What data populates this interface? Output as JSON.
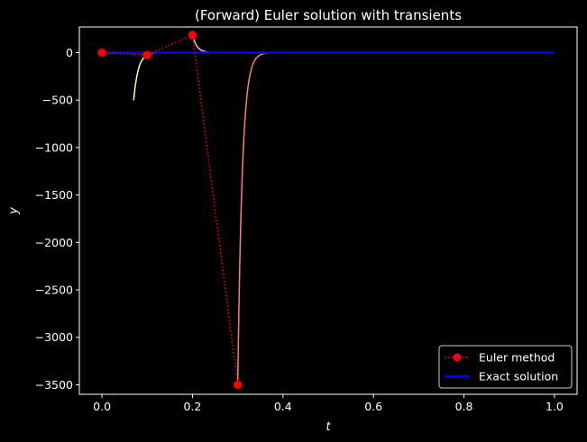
{
  "chart_data": {
    "type": "line",
    "title": "(Forward) Euler solution with transients",
    "xlabel": "t",
    "ylabel": "y",
    "xlim": [
      -0.05,
      1.05
    ],
    "ylim": [
      -3600,
      270
    ],
    "x_ticks": [
      0.0,
      0.2,
      0.4,
      0.6,
      0.8,
      1.0
    ],
    "x_tick_labels": [
      "0.0",
      "0.2",
      "0.4",
      "0.6",
      "0.8",
      "1.0"
    ],
    "y_ticks": [
      0,
      -500,
      -1000,
      -1500,
      -2000,
      -2500,
      -3000,
      -3500
    ],
    "y_tick_labels": [
      "0",
      "−500",
      "−1000",
      "−1500",
      "−2000",
      "−2500",
      "−3000",
      "−3500"
    ],
    "grid": false,
    "legend_position": "lower-right",
    "series": [
      {
        "name": "Euler method",
        "color": "#ff0000",
        "style": "dotted-with-markers",
        "x": [
          0.0,
          0.1,
          0.2,
          0.3
        ],
        "y": [
          0,
          -25,
          185,
          -3500
        ]
      },
      {
        "name": "Exact solution",
        "color": "#0000ff",
        "style": "solid",
        "x": [
          0.0,
          0.25,
          0.5,
          0.75,
          1.0
        ],
        "y": [
          0,
          0,
          0,
          0,
          0
        ]
      }
    ],
    "transients": [
      {
        "color": "#ffff99",
        "t0": 0.1,
        "t_start": 0.07,
        "lambda": 100
      },
      {
        "color": "#ffb6c1",
        "t0": 0.2,
        "t_start": 0.2,
        "lambda": 100
      },
      {
        "color": "#fa8072",
        "t0": 0.3,
        "t_start": 0.3,
        "lambda": 100
      }
    ]
  }
}
